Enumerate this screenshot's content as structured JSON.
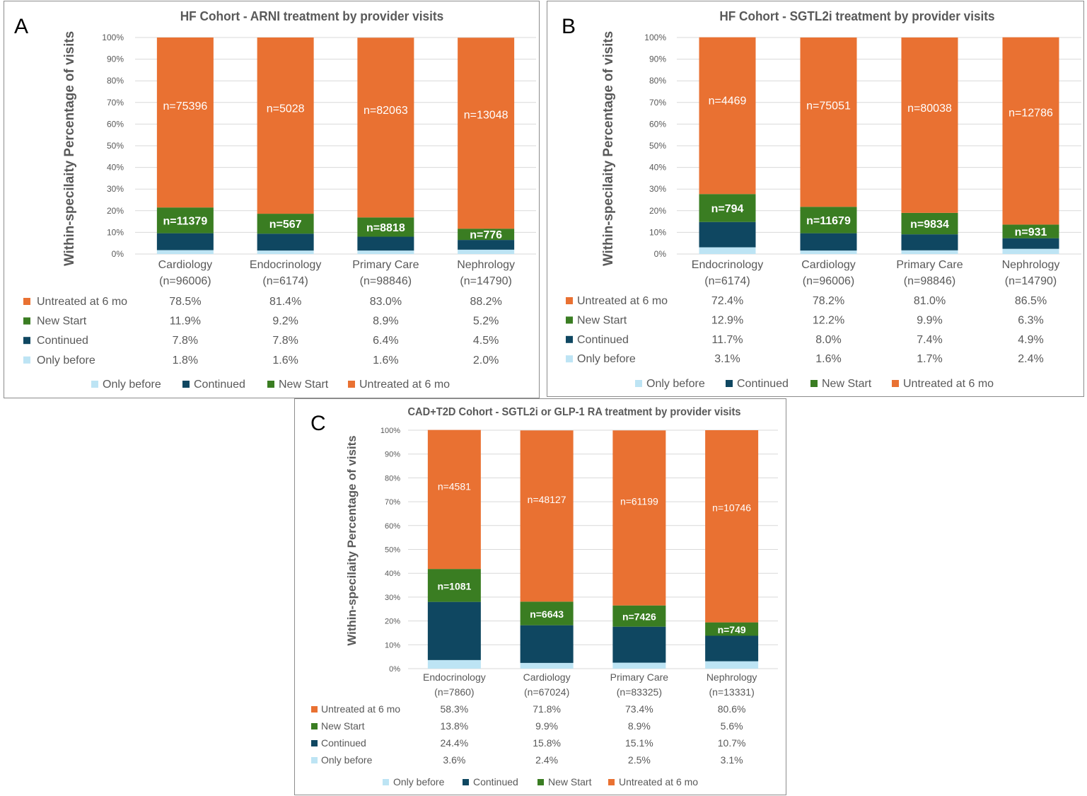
{
  "colors": {
    "only_before": "#bde4f4",
    "continued": "#0f4761",
    "new_start": "#3a7d22",
    "untreated": "#e97132",
    "grid": "#d9d9d9",
    "text": "#595959",
    "title": "#595959"
  },
  "legend_order": [
    "Only before",
    "Continued",
    "New Start",
    "Untreated at 6 mo"
  ],
  "chart_data": [
    {
      "type": "bar",
      "stacked": true,
      "panel_letter": "A",
      "title": "HF Cohort - ARNI treatment by provider visits",
      "ylabel": "Within-specilaity Percentage of visits",
      "ylim": [
        0,
        100
      ],
      "yticks": [
        "0%",
        "10%",
        "20%",
        "30%",
        "40%",
        "50%",
        "60%",
        "70%",
        "80%",
        "90%",
        "100%"
      ],
      "categories": [
        "Cardiology",
        "Endocrinology",
        "Primary Care",
        "Nephrology"
      ],
      "category_n": [
        "(n=96006)",
        "(n=6174)",
        "(n=98846)",
        "(n=14790)"
      ],
      "series": [
        {
          "name": "Only before",
          "values": [
            1.8,
            1.6,
            1.6,
            2.0
          ],
          "labels": [
            "1.8%",
            "1.6%",
            "1.6%",
            "2.0%"
          ]
        },
        {
          "name": "Continued",
          "values": [
            7.8,
            7.8,
            6.4,
            4.5
          ],
          "labels": [
            "7.8%",
            "7.8%",
            "6.4%",
            "4.5%"
          ]
        },
        {
          "name": "New Start",
          "values": [
            11.9,
            9.2,
            8.9,
            5.2
          ],
          "labels": [
            "11.9%",
            "9.2%",
            "8.9%",
            "5.2%"
          ],
          "bar_labels": [
            "n=11379",
            "n=567",
            "n=8818",
            "n=776"
          ]
        },
        {
          "name": "Untreated at 6 mo",
          "values": [
            78.5,
            81.4,
            83.0,
            88.2
          ],
          "labels": [
            "78.5%",
            "81.4%",
            "83.0%",
            "88.2%"
          ],
          "bar_labels": [
            "n=75396",
            "n=5028",
            "n=82063",
            "n=13048"
          ]
        }
      ],
      "table_order": [
        "Untreated at 6 mo",
        "New Start",
        "Continued",
        "Only before"
      ]
    },
    {
      "type": "bar",
      "stacked": true,
      "panel_letter": "B",
      "title": "HF Cohort - SGTL2i treatment by provider visits",
      "ylabel": "Within-specilaity Percentage of visits",
      "ylim": [
        0,
        100
      ],
      "yticks": [
        "0%",
        "10%",
        "20%",
        "30%",
        "40%",
        "50%",
        "60%",
        "70%",
        "80%",
        "90%",
        "100%"
      ],
      "categories": [
        "Endocrinology",
        "Cardiology",
        "Primary Care",
        "Nephrology"
      ],
      "category_n": [
        "(n=6174)",
        "(n=96006)",
        "(n=98846)",
        "(n=14790)"
      ],
      "series": [
        {
          "name": "Only before",
          "values": [
            3.1,
            1.6,
            1.7,
            2.4
          ],
          "labels": [
            "3.1%",
            "1.6%",
            "1.7%",
            "2.4%"
          ]
        },
        {
          "name": "Continued",
          "values": [
            11.7,
            8.0,
            7.4,
            4.9
          ],
          "labels": [
            "11.7%",
            "8.0%",
            "7.4%",
            "4.9%"
          ]
        },
        {
          "name": "New Start",
          "values": [
            12.9,
            12.2,
            9.9,
            6.3
          ],
          "labels": [
            "12.9%",
            "12.2%",
            "9.9%",
            "6.3%"
          ],
          "bar_labels": [
            "n=794",
            "n=11679",
            "n=9834",
            "n=931"
          ]
        },
        {
          "name": "Untreated at 6 mo",
          "values": [
            72.4,
            78.2,
            81.0,
            86.5
          ],
          "labels": [
            "72.4%",
            "78.2%",
            "81.0%",
            "86.5%"
          ],
          "bar_labels": [
            "n=4469",
            "n=75051",
            "n=80038",
            "n=12786"
          ]
        }
      ],
      "table_order": [
        "Untreated at 6 mo",
        "New Start",
        "Continued",
        "Only before"
      ]
    },
    {
      "type": "bar",
      "stacked": true,
      "panel_letter": "C",
      "title": "CAD+T2D Cohort - SGTL2i or GLP-1 RA treatment by provider visits",
      "ylabel": "Within-specilaity Percentage of visits",
      "ylim": [
        0,
        100
      ],
      "yticks": [
        "0%",
        "10%",
        "20%",
        "30%",
        "40%",
        "50%",
        "60%",
        "70%",
        "80%",
        "90%",
        "100%"
      ],
      "categories": [
        "Endocrinology",
        "Cardiology",
        "Primary Care",
        "Nephrology"
      ],
      "category_n": [
        "(n=7860)",
        "(n=67024)",
        "(n=83325)",
        "(n=13331)"
      ],
      "series": [
        {
          "name": "Only before",
          "values": [
            3.6,
            2.4,
            2.5,
            3.1
          ],
          "labels": [
            "3.6%",
            "2.4%",
            "2.5%",
            "3.1%"
          ]
        },
        {
          "name": "Continued",
          "values": [
            24.4,
            15.8,
            15.1,
            10.7
          ],
          "labels": [
            "24.4%",
            "15.8%",
            "15.1%",
            "10.7%"
          ]
        },
        {
          "name": "New Start",
          "values": [
            13.8,
            9.9,
            8.9,
            5.6
          ],
          "labels": [
            "13.8%",
            "9.9%",
            "8.9%",
            "5.6%"
          ],
          "bar_labels": [
            "n=1081",
            "n=6643",
            "n=7426",
            "n=749"
          ]
        },
        {
          "name": "Untreated at 6 mo",
          "values": [
            58.3,
            71.8,
            73.4,
            80.6
          ],
          "labels": [
            "58.3%",
            "71.8%",
            "73.4%",
            "80.6%"
          ],
          "bar_labels": [
            "n=4581",
            "n=48127",
            "n=61199",
            "n=10746"
          ]
        }
      ],
      "table_order": [
        "Untreated at 6 mo",
        "New Start",
        "Continued",
        "Only before"
      ]
    }
  ]
}
